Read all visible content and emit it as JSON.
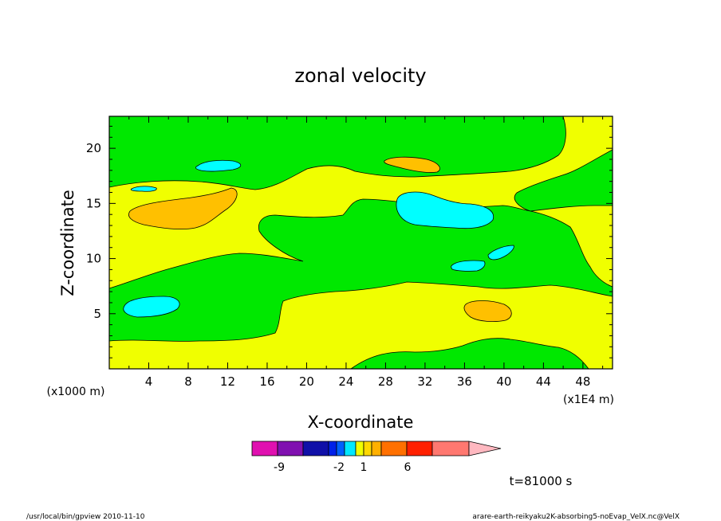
{
  "chart_data": {
    "type": "heatmap",
    "title": "zonal velocity",
    "xlabel": "X-coordinate",
    "ylabel": "Z-coordinate",
    "x_ticks": [
      4,
      8,
      12,
      16,
      20,
      24,
      28,
      32,
      36,
      40,
      44,
      48
    ],
    "y_ticks": [
      5,
      10,
      15,
      20
    ],
    "xlim": [
      0,
      51
    ],
    "ylim": [
      0,
      22.9
    ],
    "x_units_label": "(x1E4 m)",
    "z_units_label": "(x1000 m)",
    "time_label": "t=81000 s",
    "colorbar": {
      "tick_labels": [
        "-9",
        "-2",
        "1",
        "6"
      ],
      "colors": [
        "#e010b0",
        "#8010b0",
        "#1010a8",
        "#0020e8",
        "#0060ff",
        "#00e8ff",
        "#f0ff00",
        "#ffd800",
        "#ffb000",
        "#ff7000",
        "#ff2000",
        "#ff7870",
        "#ffb8c0"
      ]
    },
    "regions": [
      {
        "name": "background",
        "level": "-2 to 1",
        "color": "#00e800"
      },
      {
        "name": "lower yellow band",
        "level": "1 to 2",
        "color": "#f0ff00"
      },
      {
        "name": "upper yellow band",
        "level": "1 to 2",
        "color": "#f0ff00"
      },
      {
        "name": "orange cells",
        "level": "2 to 3",
        "color": "#ffc000"
      },
      {
        "name": "cyan cells",
        "level": "-3 to -2",
        "color": "#00ffff"
      }
    ]
  },
  "footer": {
    "left": "/usr/local/bin/gpview  2010-11-10",
    "right": "arare-earth-reikyaku2K-absorbing5-noEvap_VelX.nc@VelX"
  }
}
